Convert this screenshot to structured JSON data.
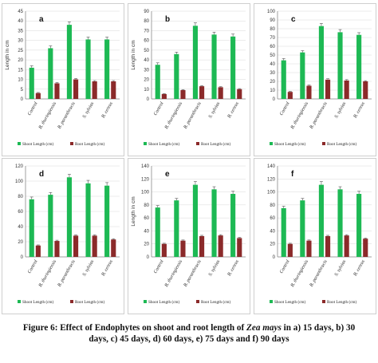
{
  "caption": {
    "prefix": "Figure 6: Effect of Endophytes on shoot and root length of ",
    "species": "Zea mays",
    "line1_suffix": " in a) 15 days, b) 30",
    "line2": "days, c) 45 days, d) 60 days, e) 75 days and f) 90 days"
  },
  "colors": {
    "shoot": "#1db954",
    "root": "#8b2a2a",
    "axis": "#888888",
    "grid": "#d8d8d8"
  },
  "chart_data": [
    {
      "type": "bar",
      "panel": "a",
      "ylabel": "Length in cm",
      "ylim": [
        0,
        45
      ],
      "yticks": [
        0,
        5,
        10,
        15,
        20,
        25,
        30,
        35,
        40,
        45
      ],
      "categories": [
        "Control",
        "B. thuringiensis",
        "B. paranthracis",
        "S. sylvias",
        "B. cereus"
      ],
      "series": [
        {
          "name": "Shoot Length (cm)",
          "values": [
            16,
            26,
            38,
            30.5,
            30.5
          ],
          "errors": [
            1,
            1.2,
            1.5,
            1.2,
            1.2
          ]
        },
        {
          "name": "Root Length (cm)",
          "values": [
            3,
            8,
            10,
            9,
            9
          ],
          "errors": [
            0.3,
            0.4,
            0.5,
            0.4,
            0.4
          ]
        }
      ],
      "legend_position": "bottom"
    },
    {
      "type": "bar",
      "panel": "b",
      "ylabel": "Length in cm",
      "ylim": [
        0,
        90
      ],
      "yticks": [
        0,
        10,
        20,
        30,
        40,
        50,
        60,
        70,
        80,
        90
      ],
      "categories": [
        "Control",
        "B. thuringiensis",
        "B. paranthracis",
        "S. sylvias",
        "B. cereus"
      ],
      "series": [
        {
          "name": "Shoot Length (cm)",
          "values": [
            35,
            46,
            75,
            66,
            64
          ],
          "errors": [
            2,
            2,
            3,
            2.5,
            2.5
          ]
        },
        {
          "name": "Root Length (cm)",
          "values": [
            5,
            9,
            13,
            12,
            10
          ],
          "errors": [
            0.5,
            0.6,
            0.7,
            0.6,
            0.6
          ]
        }
      ],
      "legend_position": "bottom"
    },
    {
      "type": "bar",
      "panel": "c",
      "ylabel": "",
      "ylim": [
        0,
        100
      ],
      "yticks": [
        0,
        10,
        20,
        30,
        40,
        50,
        60,
        70,
        80,
        90,
        100
      ],
      "categories": [
        "Control",
        "B. thuringiensis",
        "B. paranthracis",
        "S. sylvias",
        "B. cereus"
      ],
      "series": [
        {
          "name": "Shoot Length (cm)",
          "values": [
            44,
            53,
            83,
            76,
            73
          ],
          "errors": [
            2,
            2,
            3,
            3,
            2.5
          ]
        },
        {
          "name": "Root Length (cm)",
          "values": [
            8,
            15,
            22,
            21,
            20
          ],
          "errors": [
            0.6,
            0.8,
            1,
            1,
            0.8
          ]
        }
      ],
      "legend_position": "bottom"
    },
    {
      "type": "bar",
      "panel": "d",
      "ylabel": "",
      "ylim": [
        0,
        120
      ],
      "yticks": [
        0,
        20,
        40,
        60,
        80,
        100,
        120
      ],
      "categories": [
        "Control",
        "B. thuringiensis",
        "B. paranthracis",
        "S. sylvias",
        "B. cereus"
      ],
      "series": [
        {
          "name": "Shoot Length (cm)",
          "values": [
            76,
            82,
            105,
            97,
            94
          ],
          "errors": [
            3,
            3,
            4,
            4,
            4
          ]
        },
        {
          "name": "Root Length (cm)",
          "values": [
            15,
            21,
            28,
            28,
            23
          ],
          "errors": [
            0.8,
            1,
            1,
            1,
            1
          ]
        }
      ],
      "legend_position": "bottom"
    },
    {
      "type": "bar",
      "panel": "e",
      "ylabel": "Length in cm",
      "ylim": [
        0,
        140
      ],
      "yticks": [
        0,
        20,
        40,
        60,
        80,
        100,
        120,
        140
      ],
      "categories": [
        "Control",
        "B. thuringiensis",
        "B. paranthracis",
        "S. sylvias",
        "B. cereus"
      ],
      "series": [
        {
          "name": "Shoot Length (cm)",
          "values": [
            76,
            87,
            111,
            104,
            97
          ],
          "errors": [
            3,
            3,
            5,
            4,
            4
          ]
        },
        {
          "name": "Root Length (cm)",
          "values": [
            20,
            25,
            32,
            33,
            29
          ],
          "errors": [
            1,
            1,
            1.2,
            1.2,
            1
          ]
        }
      ],
      "legend_position": "bottom"
    },
    {
      "type": "bar",
      "panel": "f",
      "ylabel": "",
      "ylim": [
        0,
        140
      ],
      "yticks": [
        0,
        20,
        40,
        60,
        80,
        100,
        120,
        140
      ],
      "categories": [
        "Control",
        "B. thuringiensis",
        "B. paranthracis",
        "S. sylvias",
        "B. cereus"
      ],
      "series": [
        {
          "name": "Shoot Length (cm)",
          "values": [
            75,
            87,
            111,
            104,
            97
          ],
          "errors": [
            3,
            3,
            5,
            4,
            4
          ]
        },
        {
          "name": "Root Length (cm)",
          "values": [
            20,
            25,
            32,
            33,
            28
          ],
          "errors": [
            1,
            1,
            1.2,
            1.2,
            1
          ]
        }
      ],
      "legend_position": "bottom"
    }
  ]
}
